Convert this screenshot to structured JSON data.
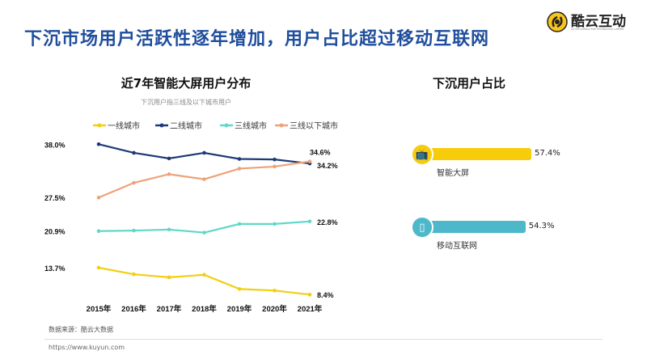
{
  "header": {
    "title": "下沉市场用户活跃性逐年增加，用户占比超过移动互联网",
    "logo_text": "酷云互动",
    "logo_subtext": "KUYUN INTERACTIVE TECHNOLOGY LIMITED"
  },
  "chart_data": [
    {
      "type": "line",
      "title": "近7年智能大屏用户分布",
      "subtitle": "下沉用户指三线及以下城市用户",
      "categories": [
        "2015年",
        "2016年",
        "2017年",
        "2018年",
        "2019年",
        "2020年",
        "2021年"
      ],
      "ylim": [
        8,
        38.5
      ],
      "grid": false,
      "legend_position": "top",
      "series": [
        {
          "name": "一线城市",
          "color": "#f2cf0f",
          "values": [
            13.7,
            12.4,
            11.8,
            12.3,
            9.5,
            9.2,
            8.4
          ],
          "labels": {
            "first": "13.7%",
            "last": "8.4%"
          }
        },
        {
          "name": "二线城市",
          "color": "#1d3a78",
          "values": [
            38.0,
            36.3,
            35.2,
            36.3,
            35.1,
            35.0,
            34.2
          ],
          "labels": {
            "first": "38.0%",
            "last": "34.2%"
          }
        },
        {
          "name": "三线城市",
          "color": "#5fd8c8",
          "values": [
            20.9,
            21.0,
            21.2,
            20.6,
            22.3,
            22.3,
            22.8
          ],
          "labels": {
            "first": "20.9%",
            "last": "22.8%"
          }
        },
        {
          "name": "三线以下城市",
          "color": "#eea27a",
          "values": [
            27.5,
            30.4,
            32.1,
            31.1,
            33.2,
            33.6,
            34.6
          ],
          "labels": {
            "first": "27.5%",
            "last": "34.6%"
          }
        }
      ]
    },
    {
      "type": "bar",
      "title": "下沉用户占比",
      "categories": [
        "智能大屏",
        "移动互联网"
      ],
      "values": [
        57.4,
        54.3
      ],
      "value_labels": [
        "57.4%",
        "54.3%"
      ],
      "colors": [
        "#f7cc0c",
        "#4db8c9"
      ],
      "icons": [
        "tv-icon",
        "phone-icon"
      ]
    }
  ],
  "footer": {
    "source": "数据来源：酷云大数据",
    "url": "https://www.kuyun.com"
  }
}
